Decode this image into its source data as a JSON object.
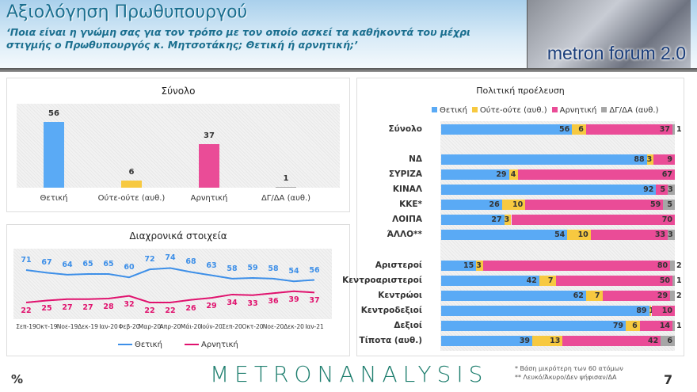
{
  "header": {
    "title": "Αξιολόγηση Πρωθυπουργού",
    "subtitle": "‘Ποια είναι η γνώμη σας για τον τρόπο με τον οποίο ασκεί τα καθήκοντά του μέχρι στιγμής ο Πρωθυπουργός κ. Μητσοτάκης; Θετική ή αρνητική;’",
    "badge": "metron forum 2.0"
  },
  "colors": {
    "positive": "#5aaaf5",
    "neutral": "#f7c940",
    "negative": "#ea4c97",
    "dkna": "#a6a6a6"
  },
  "chart_data": [
    {
      "type": "bar",
      "title": "Σύνολο",
      "categories": [
        "Θετική",
        "Ούτε-ούτε (αυθ.)",
        "Αρνητική",
        "ΔΓ/ΔΑ (αυθ.)"
      ],
      "values": [
        56,
        6,
        37,
        1
      ]
    },
    {
      "type": "line",
      "title": "Διαχρονικά στοιχεία",
      "x": [
        "Σεπ-19",
        "Οκτ-19",
        "Νοε-19",
        "Δεκ-19",
        "Ιαν-20",
        "Φεβ-20",
        "Μαρ-20",
        "Απρ-20",
        "Μάι-20",
        "Ιούν-20",
        "Σεπ-20",
        "Οκτ-20",
        "Νοε-20",
        "Δεκ-20",
        "Ιαν-21"
      ],
      "series": [
        {
          "name": "Θετική",
          "values": [
            71,
            67,
            64,
            65,
            65,
            60,
            72,
            74,
            68,
            63,
            58,
            59,
            58,
            54,
            56
          ]
        },
        {
          "name": "Αρνητική",
          "values": [
            22,
            25,
            27,
            27,
            28,
            32,
            22,
            22,
            26,
            29,
            34,
            33,
            36,
            39,
            37
          ]
        }
      ],
      "legend": "bottom"
    },
    {
      "type": "bar",
      "stacked": true,
      "orientation": "horizontal",
      "title": "Πολιτική προέλευση",
      "legend": "top",
      "series_names": [
        "Θετική",
        "Ούτε-ούτε (αυθ.)",
        "Αρνητική",
        "ΔΓ/ΔΑ (αυθ.)"
      ],
      "groups": [
        [
          {
            "label": "Σύνολο",
            "values": [
              56,
              6,
              37,
              1
            ]
          }
        ],
        [
          {
            "label": "ΝΔ",
            "values": [
              88,
              3,
              9,
              0
            ]
          },
          {
            "label": "ΣΥΡΙΖΑ",
            "values": [
              29,
              4,
              67,
              0
            ]
          },
          {
            "label": "ΚΙΝΑΛ",
            "values": [
              92,
              0,
              5,
              3
            ]
          },
          {
            "label": "ΚΚΕ*",
            "values": [
              26,
              10,
              59,
              5
            ]
          },
          {
            "label": "ΛΟΙΠΑ",
            "values": [
              27,
              3,
              70,
              0
            ]
          },
          {
            "label": "ΆΛΛΟ**",
            "values": [
              54,
              10,
              33,
              3
            ]
          }
        ],
        [
          {
            "label": "Αριστεροί",
            "values": [
              15,
              3,
              80,
              2
            ]
          },
          {
            "label": "Κεντροαριστεροί",
            "values": [
              42,
              7,
              50,
              1
            ]
          },
          {
            "label": "Κεντρώοι",
            "values": [
              62,
              7,
              29,
              2
            ]
          },
          {
            "label": "Κεντροδεξιοί",
            "values": [
              89,
              1,
              10,
              0
            ]
          },
          {
            "label": "Δεξιοί",
            "values": [
              79,
              6,
              14,
              1
            ]
          },
          {
            "label": "Τίποτα (αυθ.)",
            "values": [
              39,
              13,
              42,
              6
            ]
          }
        ]
      ]
    }
  ],
  "footer": {
    "unit": "%",
    "logo": "METRONANALYSIS",
    "note1": "*  Βάση μικρότερη των 60 ατόμων",
    "note2": "** Λευκό/Άκυρο/Δεν ψήφισαν/ΔΑ",
    "page": "7"
  }
}
